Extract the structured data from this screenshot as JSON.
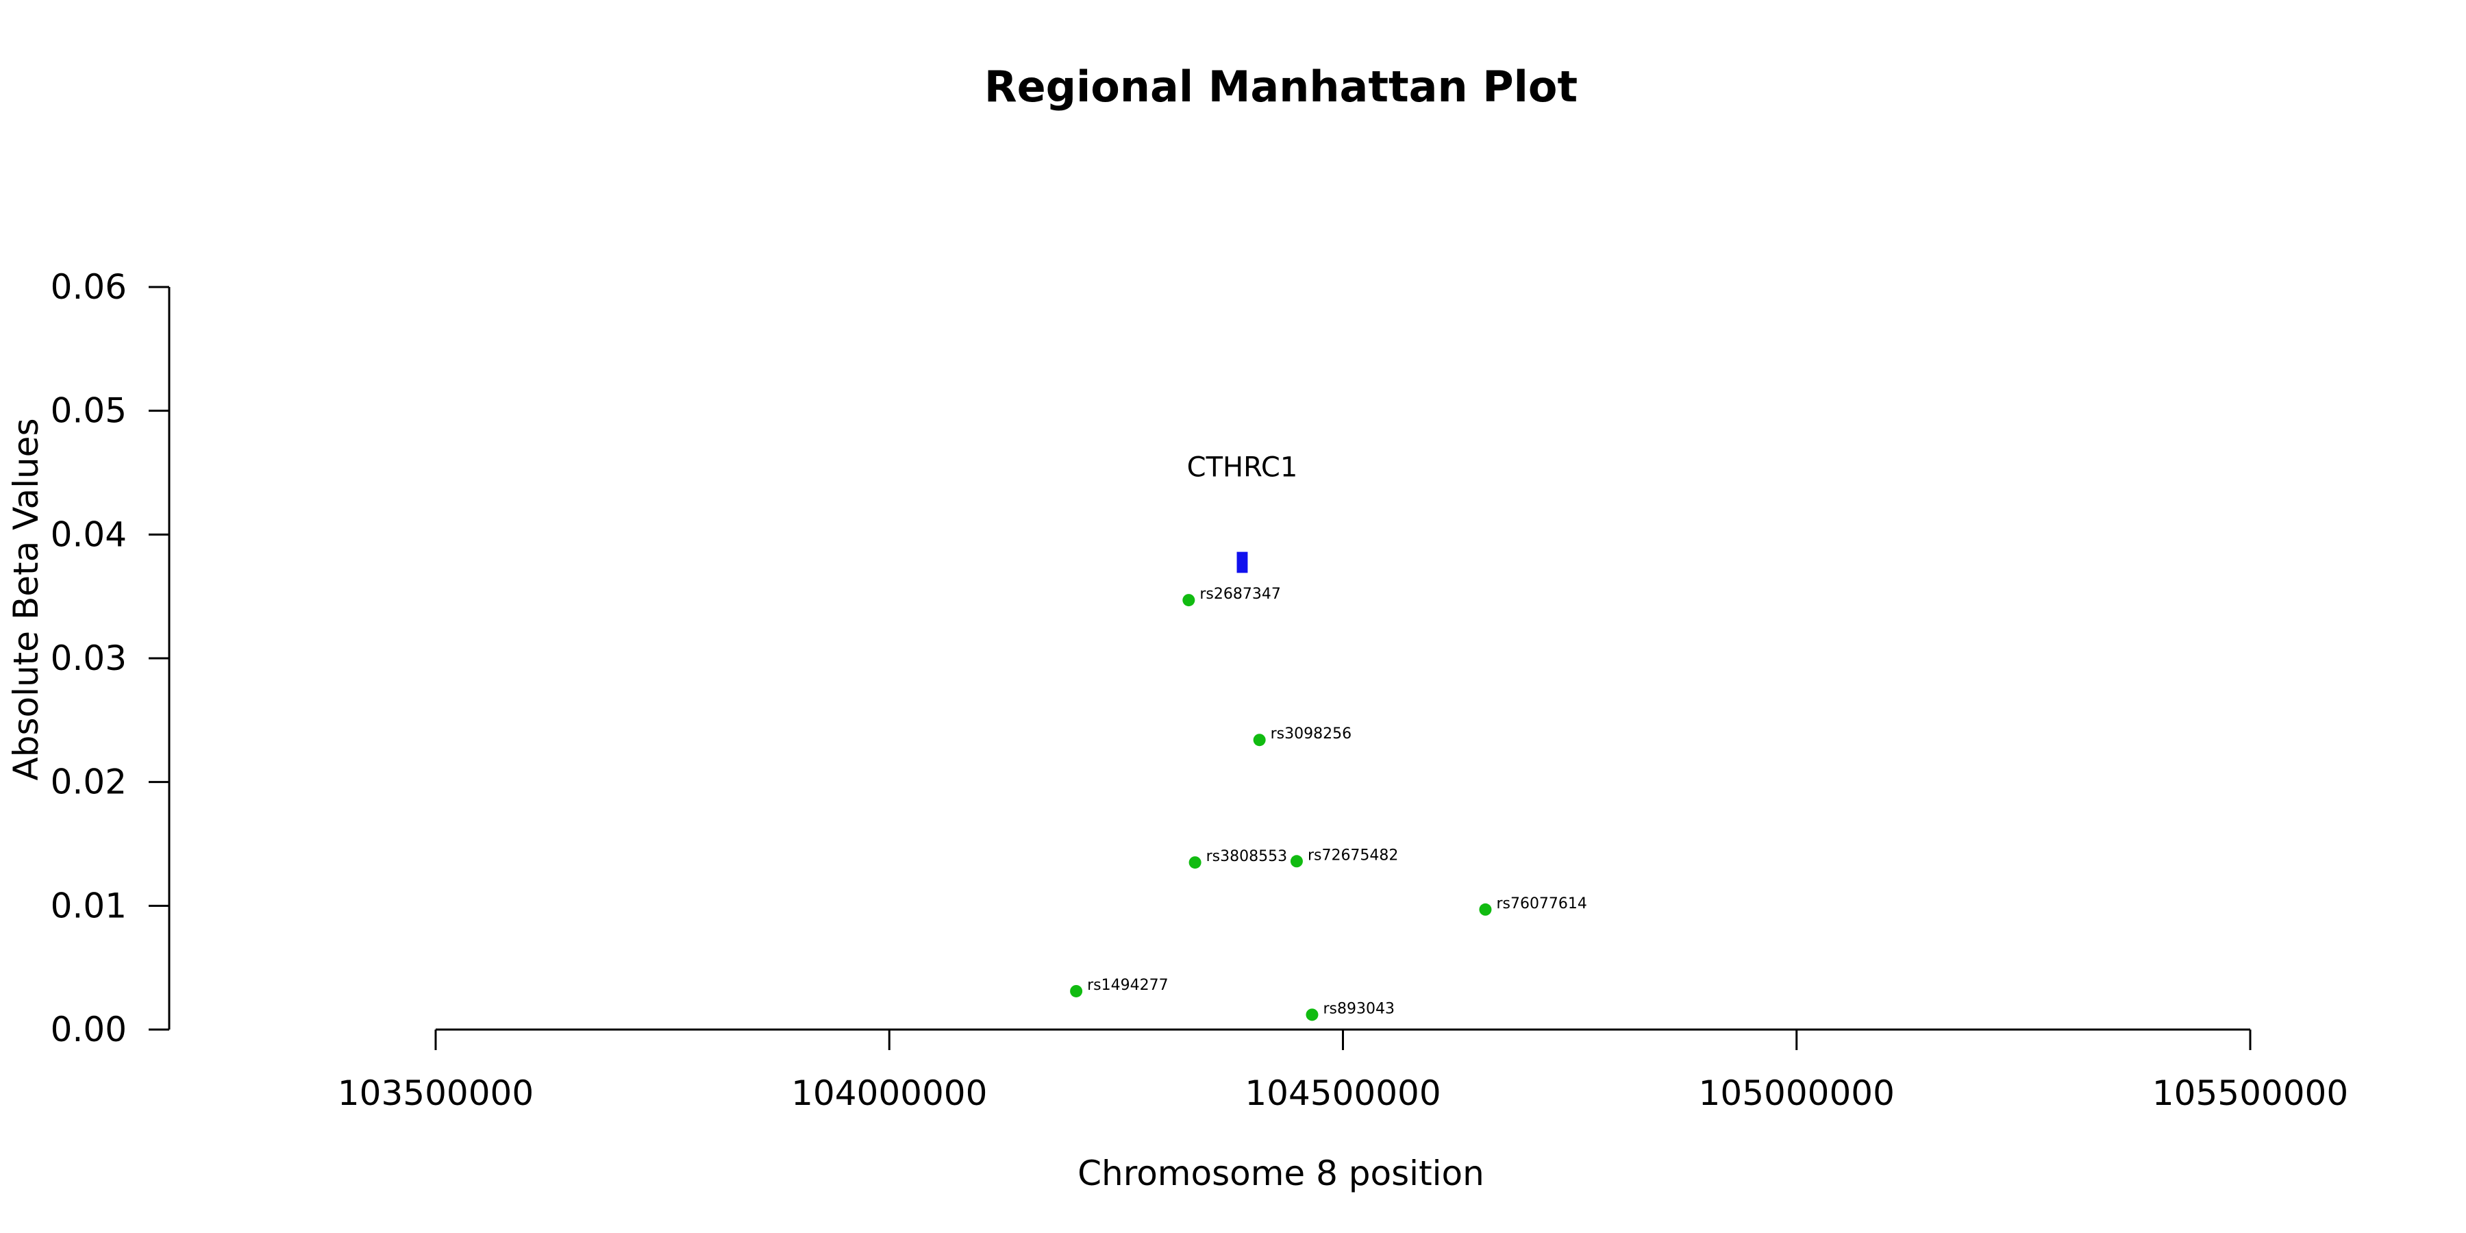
{
  "chart_data": {
    "type": "scatter",
    "title": "Regional Manhattan Plot",
    "xlabel": "Chromosome 8 position",
    "ylabel": "Absolute Beta Values",
    "xlim": [
      103500000,
      105500000
    ],
    "ylim": [
      0,
      0.06
    ],
    "x_ticks": [
      103500000,
      104000000,
      104500000,
      105000000,
      105500000
    ],
    "y_ticks": [
      "0.00",
      "0.01",
      "0.02",
      "0.03",
      "0.04",
      "0.05",
      "0.06"
    ],
    "grid": false,
    "points": [
      {
        "label": "rs2687347",
        "x": 104330000,
        "y": 0.0347
      },
      {
        "label": "rs3098256",
        "x": 104408000,
        "y": 0.0234
      },
      {
        "label": "rs3808553",
        "x": 104337000,
        "y": 0.0135
      },
      {
        "label": "rs72675482",
        "x": 104449000,
        "y": 0.0136
      },
      {
        "label": "rs76077614",
        "x": 104657000,
        "y": 0.0097
      },
      {
        "label": "rs1494277",
        "x": 104206000,
        "y": 0.0031
      },
      {
        "label": "rs893043",
        "x": 104466000,
        "y": 0.0012
      }
    ],
    "gene": {
      "name": "CTHRC1",
      "start": 104383000,
      "end": 104395000,
      "y_bottom": 0.0369,
      "y_top": 0.0386
    },
    "colors": {
      "points": "#11bb11",
      "gene": "#1111ee",
      "axis": "#000000"
    }
  }
}
